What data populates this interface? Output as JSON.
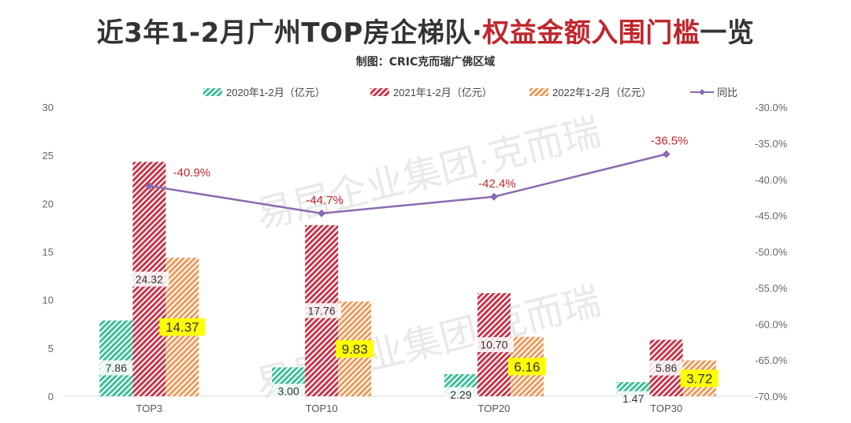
{
  "header": {
    "title_part1": "近3年1-2月广州TOP房企梯队",
    "title_sep": "·",
    "title_part2": "权益金额入围门槛",
    "title_part3": "一览",
    "source": "制图：CRIC克而瑞广佛区域"
  },
  "watermark": {
    "text1": "易居企业集团·克而瑞",
    "text2": "易居企业集团·克而瑞"
  },
  "colors": {
    "series_2020": "#3cbf97",
    "series_2021": "#c6364a",
    "series_2022": "#ec9a5a",
    "series_yoy": "#8a6bb0",
    "yoy_label": "#c0262d",
    "highlight": "#ffff00"
  },
  "chart_data": {
    "type": "bar",
    "categories": [
      "TOP3",
      "TOP10",
      "TOP20",
      "TOP30"
    ],
    "series": [
      {
        "name": "2020年1-2月（亿元）",
        "values": [
          7.86,
          3.0,
          2.29,
          1.47
        ],
        "labels": [
          "7.86",
          "3.00",
          "2.29",
          "1.47"
        ]
      },
      {
        "name": "2021年1-2月（亿元）",
        "values": [
          24.32,
          17.76,
          10.7,
          5.86
        ],
        "labels": [
          "24.32",
          "17.76",
          "10.70",
          "5.86"
        ]
      },
      {
        "name": "2022年1-2月（亿元）",
        "values": [
          14.37,
          9.83,
          6.16,
          3.72
        ],
        "labels": [
          "14.37",
          "9.83",
          "6.16",
          "3.72"
        ]
      }
    ],
    "line_series": {
      "name": "同比",
      "type": "line",
      "axis": "right",
      "values": [
        -40.9,
        -44.7,
        -42.4,
        -36.5
      ],
      "labels": [
        "-40.9%",
        "-44.7%",
        "-42.4%",
        "-36.5%"
      ]
    },
    "left_axis": {
      "ylim": [
        0,
        30
      ],
      "ticks": [
        "0",
        "5",
        "10",
        "15",
        "20",
        "25",
        "30"
      ]
    },
    "right_axis": {
      "ylim": [
        -70,
        -30
      ],
      "ticks": [
        "-70.0%",
        "-65.0%",
        "-60.0%",
        "-55.0%",
        "-50.0%",
        "-45.0%",
        "-40.0%",
        "-35.0%",
        "-30.0%"
      ]
    },
    "legend_position": "top",
    "grid": false
  }
}
